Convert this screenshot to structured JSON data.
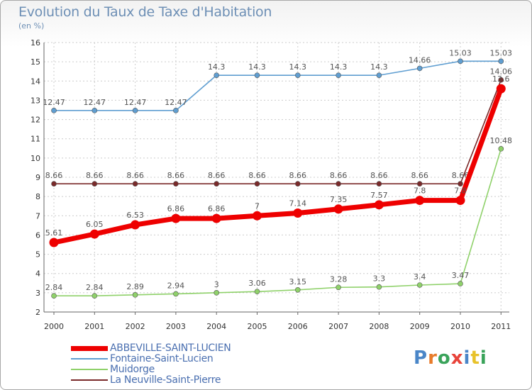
{
  "title": "Evolution du Taux de Taxe d'Habitation",
  "subtitle": "(en %)",
  "logo": {
    "text": "Proxiti",
    "colors": [
      "#4a86c8",
      "#e87b2a",
      "#3aa35a",
      "#e8433a",
      "#4a86c8",
      "#e8c22a",
      "#3aa35a"
    ]
  },
  "chart_data": {
    "type": "line",
    "title": "Evolution du Taux de Taxe d'Habitation",
    "ylabel": "(en %)",
    "xlabel": "",
    "ylim": [
      2,
      16
    ],
    "yticks": [
      2,
      3,
      4,
      5,
      6,
      7,
      8,
      9,
      10,
      11,
      12,
      13,
      14,
      15,
      16
    ],
    "categories": [
      "2000",
      "2001",
      "2002",
      "2003",
      "2004",
      "2005",
      "2006",
      "2007",
      "2008",
      "2009",
      "2010",
      "2011"
    ],
    "grid": true,
    "legend_position": "bottom",
    "series": [
      {
        "name": "Fontaine-Saint-Lucien",
        "color": "#5f9ed1",
        "values": [
          12.47,
          12.47,
          12.47,
          12.47,
          14.3,
          14.3,
          14.3,
          14.3,
          14.3,
          14.66,
          15.03,
          15.03
        ],
        "labels": [
          "12.47",
          "12.47",
          "12.47",
          "12.47",
          "14.3",
          "14.3",
          "14.3",
          "14.3",
          "14.3",
          "14.66",
          "15.03",
          "15.03"
        ]
      },
      {
        "name": "La Neuville-Saint-Pierre",
        "color": "#7a2a2a",
        "values": [
          8.66,
          8.66,
          8.66,
          8.66,
          8.66,
          8.66,
          8.66,
          8.66,
          8.66,
          8.66,
          8.66,
          14.06
        ],
        "labels": [
          "8.66",
          "8.66",
          "8.66",
          "8.66",
          "8.66",
          "8.66",
          "8.66",
          "8.66",
          "8.66",
          "8.66",
          "8.66",
          "14.06"
        ]
      },
      {
        "name": "Muidorge",
        "color": "#8fd16a",
        "values": [
          2.84,
          2.84,
          2.89,
          2.94,
          3,
          3.06,
          3.15,
          3.28,
          3.3,
          3.4,
          3.47,
          10.48
        ],
        "labels": [
          "2.84",
          "2.84",
          "2.89",
          "2.94",
          "3",
          "3.06",
          "3.15",
          "3.28",
          "3.3",
          "3.4",
          "3.47",
          "10.48"
        ]
      },
      {
        "name": "ABBEVILLE-SAINT-LUCIEN",
        "color": "#ee0000",
        "values": [
          5.61,
          6.05,
          6.53,
          6.86,
          6.86,
          7,
          7.14,
          7.35,
          7.57,
          7.8,
          7.8,
          13.6
        ],
        "labels": [
          "5.61",
          "6.05",
          "6.53",
          "6.86",
          "6.86",
          "7",
          "7.14",
          "7.35",
          "7.57",
          "7.8",
          "7.8",
          "13.6"
        ]
      }
    ]
  },
  "legend": [
    {
      "label": "ABBEVILLE-SAINT-LUCIEN",
      "color": "#ee0000",
      "thickness": 7
    },
    {
      "label": "Fontaine-Saint-Lucien",
      "color": "#5f9ed1",
      "thickness": 2
    },
    {
      "label": "Muidorge",
      "color": "#8fd16a",
      "thickness": 2
    },
    {
      "label": "La Neuville-Saint-Pierre",
      "color": "#7a2a2a",
      "thickness": 2
    }
  ]
}
